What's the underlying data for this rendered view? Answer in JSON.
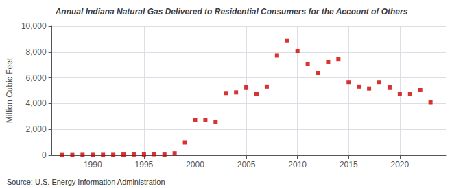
{
  "chart_data": {
    "type": "scatter",
    "title": "Annual Indiana Natural Gas Delivered to Residential Consumers for the Account of Others",
    "ylabel": "Million Cubic Feet",
    "annotations": [
      "Source: U.S. Energy Information Administration"
    ],
    "x": [
      1987,
      1988,
      1989,
      1990,
      1991,
      1992,
      1993,
      1994,
      1995,
      1996,
      1997,
      1998,
      1999,
      2000,
      2001,
      2002,
      2003,
      2004,
      2005,
      2006,
      2007,
      2008,
      2009,
      2010,
      2011,
      2012,
      2013,
      2014,
      2015,
      2016,
      2017,
      2018,
      2019,
      2020,
      2021,
      2022,
      2023
    ],
    "values": [
      20,
      20,
      30,
      30,
      30,
      30,
      50,
      60,
      60,
      80,
      50,
      150,
      980,
      2700,
      2700,
      2550,
      4800,
      4850,
      5250,
      4750,
      5300,
      7700,
      8850,
      8050,
      7050,
      6350,
      7200,
      7450,
      5650,
      5300,
      5150,
      5650,
      5250,
      4750,
      4750,
      5050,
      4100
    ],
    "color": "#cc0000",
    "marker": "square",
    "xlim": [
      1986,
      2024.5
    ],
    "xticks": [
      1990,
      1995,
      2000,
      2005,
      2010,
      2015,
      2020
    ],
    "ylim": [
      0,
      10000
    ],
    "yticks": [
      0,
      {
        "value": 2000,
        "label": "2,000"
      },
      {
        "value": 4000,
        "label": "4,000"
      },
      {
        "value": 6000,
        "label": "6,000"
      },
      {
        "value": 8000,
        "label": "8,000"
      },
      {
        "value": 10000,
        "label": "10,000"
      }
    ],
    "grid": true
  }
}
